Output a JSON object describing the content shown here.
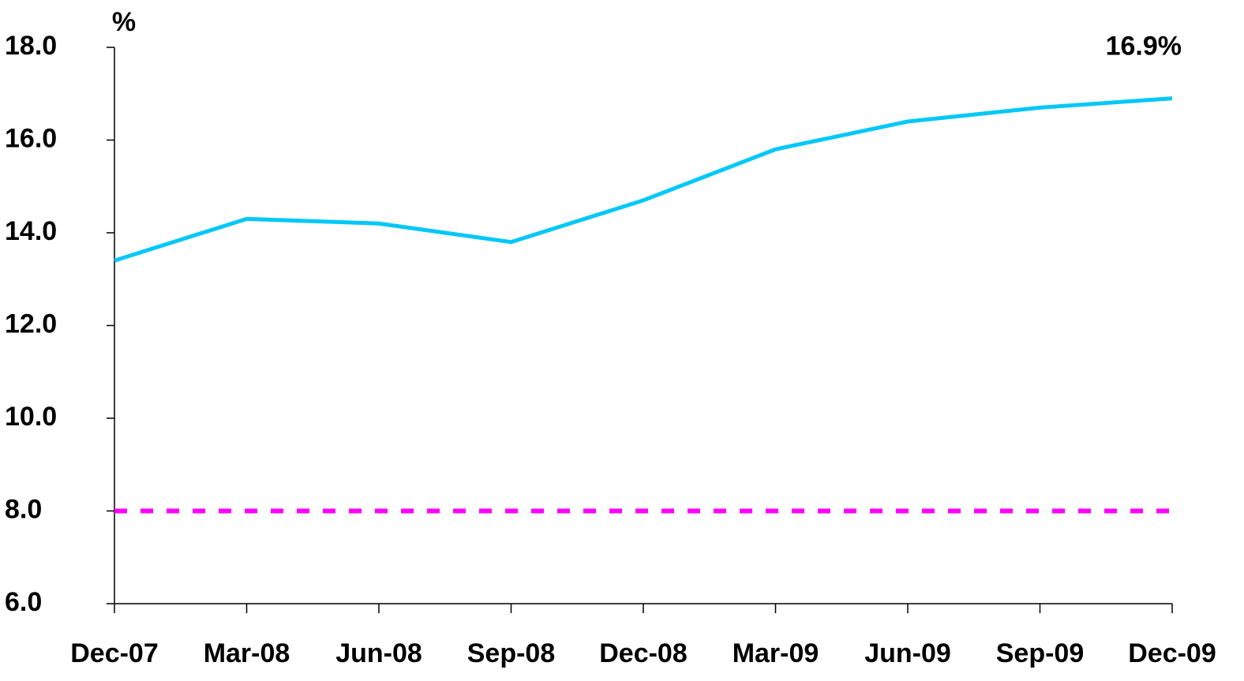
{
  "chart_data": {
    "type": "line",
    "y_unit": "%",
    "categories": [
      "Dec-07",
      "Mar-08",
      "Jun-08",
      "Sep-08",
      "Dec-08",
      "Mar-09",
      "Jun-09",
      "Sep-09",
      "Dec-09"
    ],
    "series": [
      {
        "color": "#00c8f8",
        "style": "solid",
        "values": [
          13.4,
          14.3,
          14.2,
          13.8,
          14.7,
          15.8,
          16.4,
          16.7,
          16.9
        ],
        "value_labels": [
          null,
          null,
          null,
          null,
          null,
          null,
          null,
          null,
          "16.9%"
        ]
      },
      {
        "color": "#ff00ff",
        "style": "dashed",
        "values": [
          8,
          8,
          8,
          8,
          8,
          8,
          8,
          8,
          8
        ]
      }
    ],
    "ylim": [
      6,
      18
    ],
    "yticks": [
      {
        "value": 6,
        "label": "6.0"
      },
      {
        "value": 8,
        "label": "8.0"
      },
      {
        "value": 10,
        "label": "10.0"
      },
      {
        "value": 12,
        "label": "12.0"
      },
      {
        "value": 14,
        "label": "14.0"
      },
      {
        "value": 16,
        "label": "16.0"
      },
      {
        "value": 18,
        "label": "18.0"
      }
    ],
    "grid": false
  }
}
